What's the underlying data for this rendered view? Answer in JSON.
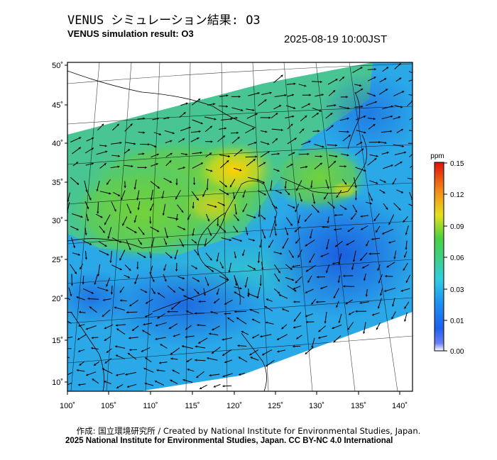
{
  "header": {
    "title_ja": "VENUS シミュレーション結果: O3",
    "title_en": "VENUS simulation result: O3",
    "timestamp": "2025-08-19 10:00JST"
  },
  "map": {
    "lat_labels": [
      "50˚",
      "45˚",
      "40˚",
      "35˚",
      "30˚",
      "25˚",
      "20˚",
      "15˚",
      "10˚"
    ],
    "lon_labels": [
      "100˚",
      "105˚",
      "110˚",
      "115˚",
      "120˚",
      "125˚",
      "130˚",
      "135˚",
      "140˚"
    ],
    "field_description_colors": {
      "low": "#1f6fe0",
      "mid": "#2ec4c8",
      "high": "#5fd040",
      "peak": "#ffd000"
    },
    "wind_vector_color": "#000000"
  },
  "colorbar": {
    "unit": "ppm",
    "ticks": [
      "0.15",
      "0.12",
      "0.09",
      "0.06",
      "0.03",
      "0.01",
      "0.00"
    ],
    "colors": [
      "#ffffff",
      "#1a3cf0",
      "#1e90ff",
      "#36d6d0",
      "#3ad13a",
      "#f7e21a",
      "#f07a1a",
      "#e01010"
    ]
  },
  "footer": {
    "credit_ja": "作成: 国立環境研究所 / Created by National Institute for Environmental Studies, Japan.",
    "credit_en": "2025 National Institute for Environmental Studies, Japan. CC BY-NC 4.0 International"
  }
}
